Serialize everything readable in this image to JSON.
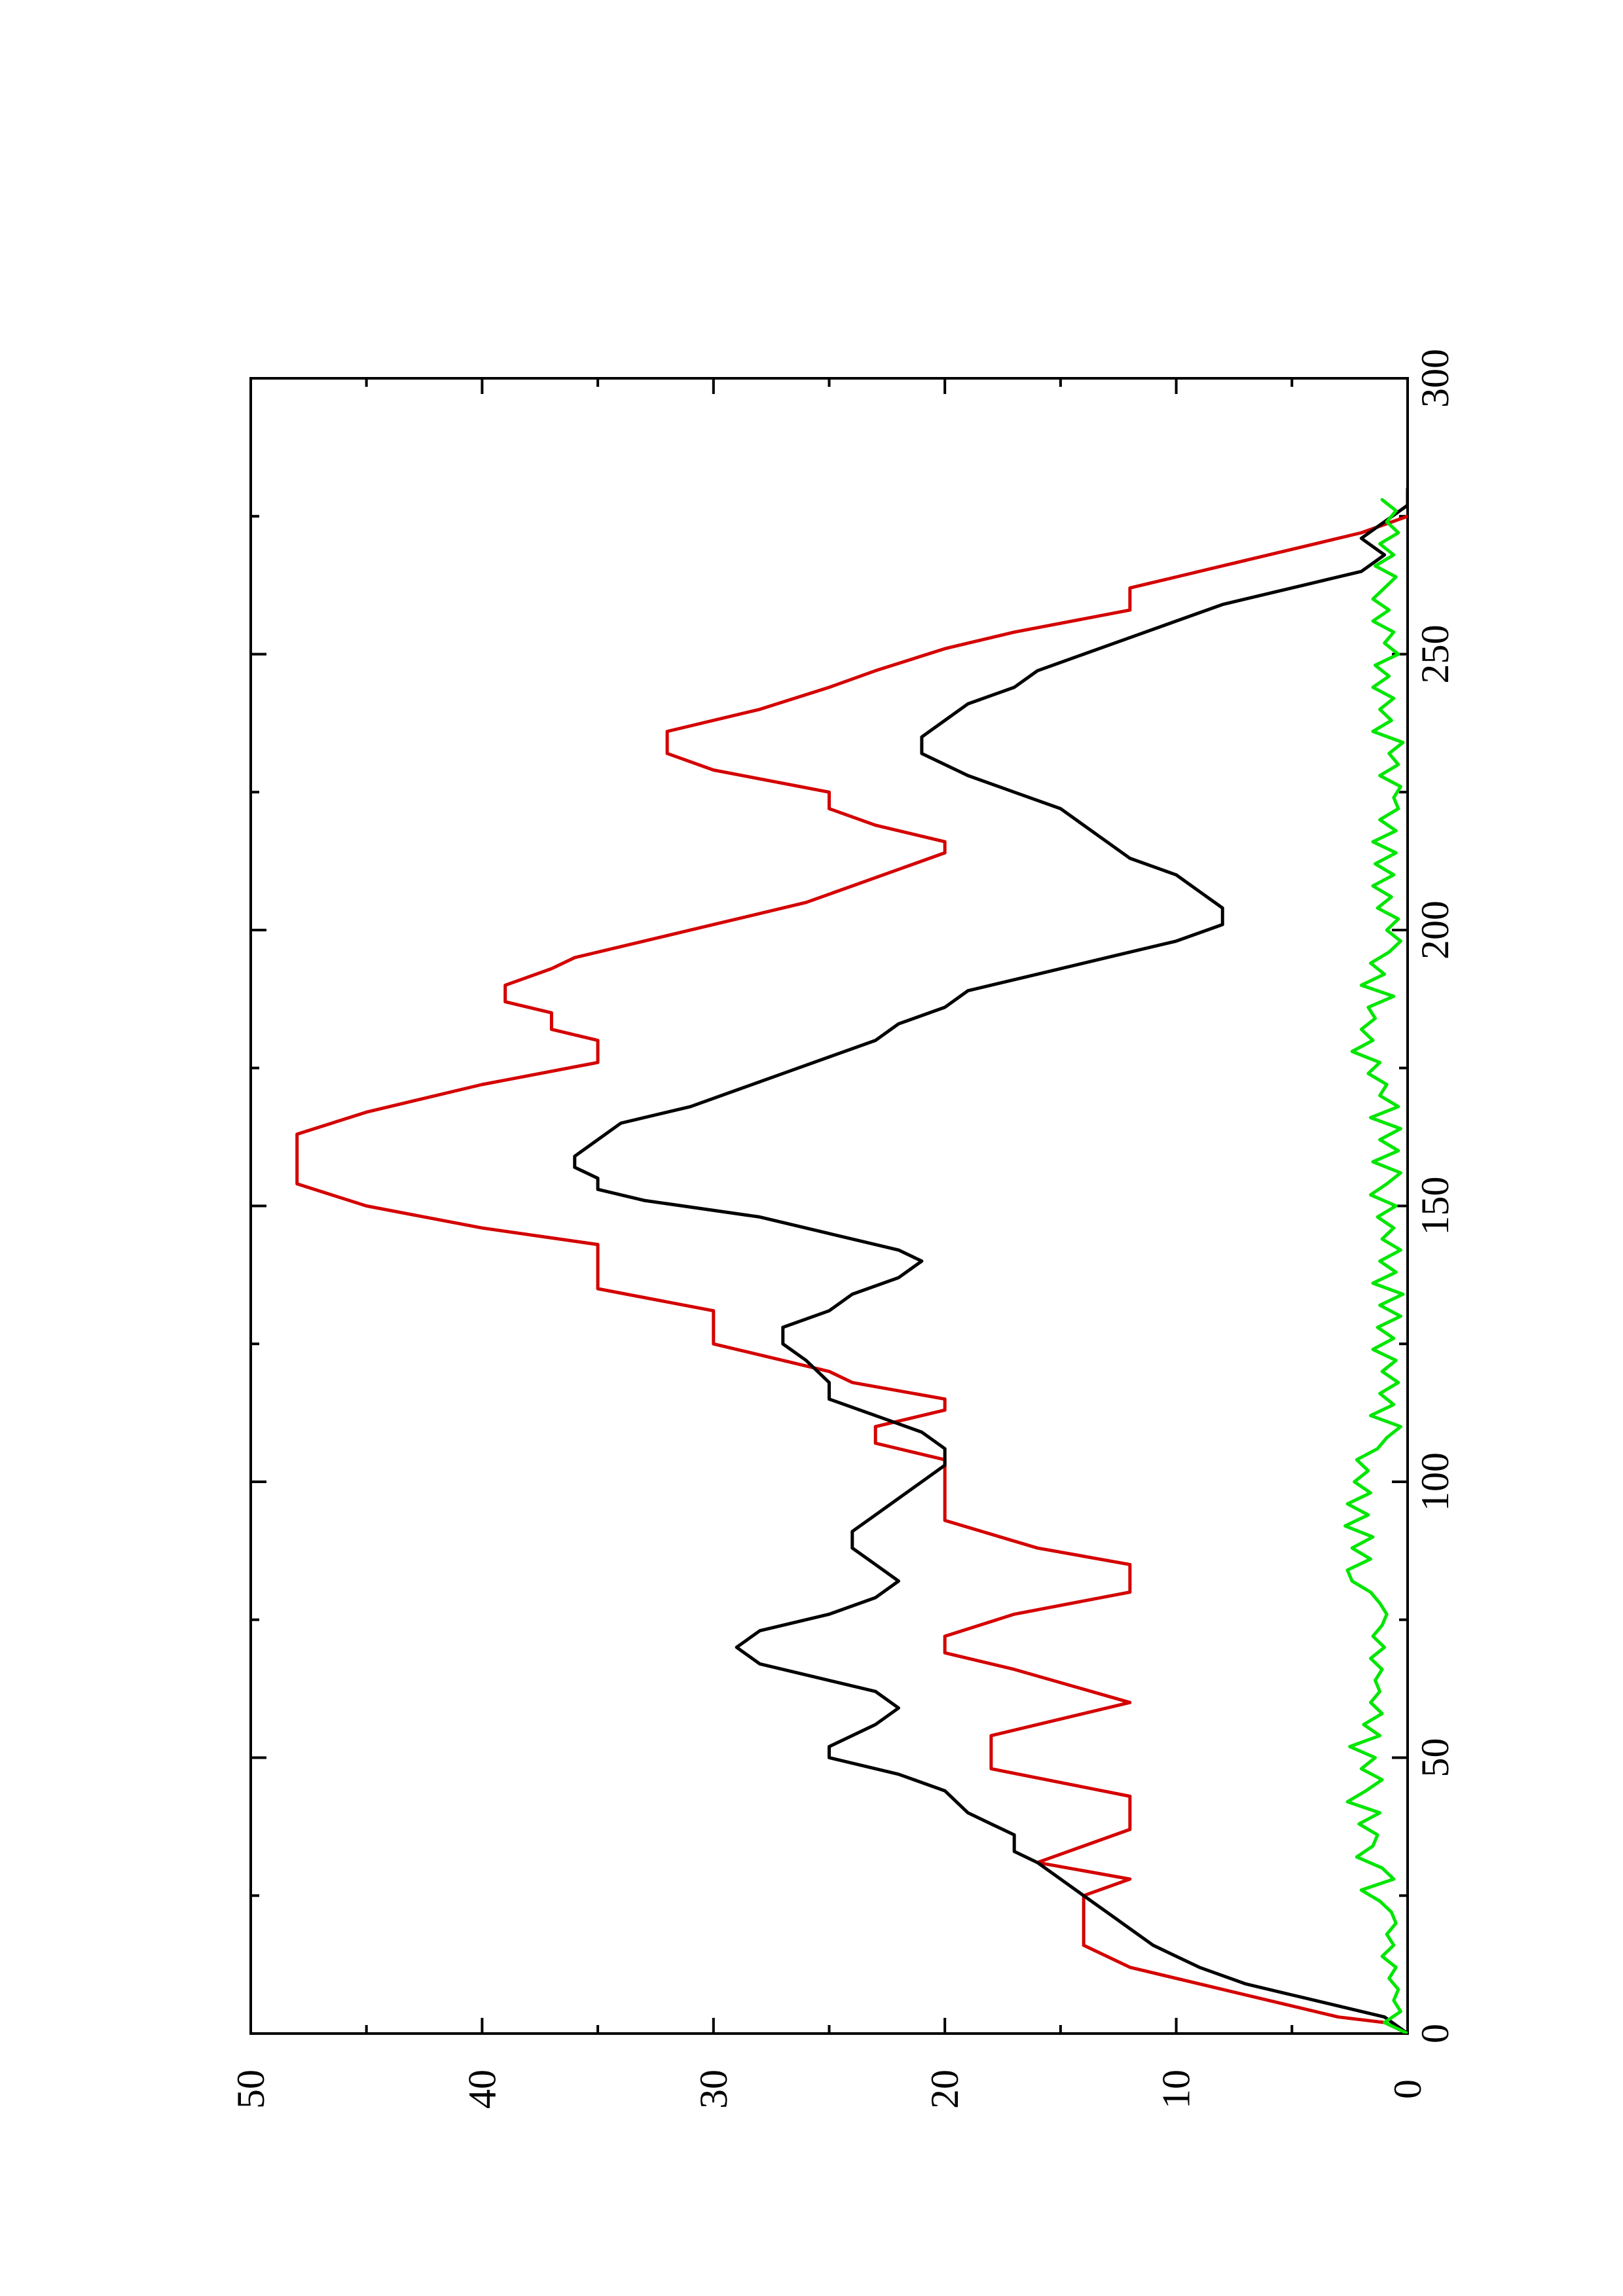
{
  "chart_data": {
    "type": "line",
    "orientation": "rotated-90-ccw",
    "title": "",
    "xlabel": "",
    "ylabel": "",
    "xlim": [
      0,
      300
    ],
    "ylim": [
      0,
      50
    ],
    "x_ticks": [
      0,
      50,
      100,
      150,
      200,
      250,
      300
    ],
    "y_ticks": [
      0,
      10,
      20,
      30,
      40,
      50
    ],
    "x_tick_labels": [
      "0",
      "50",
      "100",
      "150",
      "200",
      "250",
      "300"
    ],
    "y_tick_labels": [
      "0",
      "10",
      "20",
      "30",
      "40",
      "50"
    ],
    "grid": false,
    "legend": "none",
    "series": [
      {
        "color": "#d40000",
        "step": true,
        "points": [
          [
            0,
            0
          ],
          [
            2,
            1
          ],
          [
            3,
            3
          ],
          [
            8,
            8
          ],
          [
            12,
            12
          ],
          [
            16,
            14
          ],
          [
            25,
            14
          ],
          [
            28,
            12
          ],
          [
            31,
            16
          ],
          [
            37,
            12
          ],
          [
            43,
            12
          ],
          [
            48,
            18
          ],
          [
            54,
            18
          ],
          [
            60,
            12
          ],
          [
            66,
            17
          ],
          [
            69,
            20
          ],
          [
            72,
            20
          ],
          [
            76,
            17
          ],
          [
            80,
            12
          ],
          [
            85,
            12
          ],
          [
            88,
            16
          ],
          [
            93,
            20
          ],
          [
            104,
            20
          ],
          [
            107,
            23
          ],
          [
            110,
            23
          ],
          [
            113,
            20
          ],
          [
            115,
            20
          ],
          [
            118,
            24
          ],
          [
            120,
            25
          ],
          [
            125,
            30
          ],
          [
            131,
            30
          ],
          [
            135,
            35
          ],
          [
            143,
            35
          ],
          [
            146,
            40
          ],
          [
            150,
            45
          ],
          [
            154,
            48
          ],
          [
            163,
            48
          ],
          [
            167,
            45
          ],
          [
            172,
            40
          ],
          [
            176,
            35
          ],
          [
            180,
            35
          ],
          [
            182,
            37
          ],
          [
            185,
            37
          ],
          [
            187,
            39
          ],
          [
            190,
            39
          ],
          [
            193,
            37
          ],
          [
            195,
            36
          ],
          [
            199,
            32
          ],
          [
            201,
            30
          ],
          [
            205,
            26
          ],
          [
            208,
            24
          ],
          [
            211,
            22
          ],
          [
            214,
            20
          ],
          [
            216,
            20
          ],
          [
            219,
            23
          ],
          [
            222,
            25
          ],
          [
            225,
            25
          ],
          [
            229,
            30
          ],
          [
            232,
            32
          ],
          [
            236,
            32
          ],
          [
            240,
            28
          ],
          [
            244,
            25
          ],
          [
            247,
            23
          ],
          [
            251,
            20
          ],
          [
            254,
            17
          ],
          [
            258,
            12
          ],
          [
            262,
            12
          ],
          [
            264,
            10
          ],
          [
            266,
            8
          ],
          [
            270,
            4
          ],
          [
            272,
            2
          ],
          [
            275,
            0
          ]
        ]
      },
      {
        "color": "#000000",
        "step": false,
        "points": [
          [
            0,
            0
          ],
          [
            3,
            1
          ],
          [
            5,
            3
          ],
          [
            7,
            5
          ],
          [
            9,
            7
          ],
          [
            12,
            9
          ],
          [
            14,
            10
          ],
          [
            16,
            11
          ],
          [
            19,
            12
          ],
          [
            22,
            13
          ],
          [
            25,
            14
          ],
          [
            28,
            15
          ],
          [
            31,
            16
          ],
          [
            33,
            17
          ],
          [
            36,
            17
          ],
          [
            38,
            18
          ],
          [
            40,
            19
          ],
          [
            44,
            20
          ],
          [
            47,
            22
          ],
          [
            50,
            25
          ],
          [
            52,
            25
          ],
          [
            56,
            23
          ],
          [
            59,
            22
          ],
          [
            62,
            23
          ],
          [
            65,
            26
          ],
          [
            67,
            28
          ],
          [
            70,
            29
          ],
          [
            73,
            28
          ],
          [
            76,
            25
          ],
          [
            79,
            23
          ],
          [
            82,
            22
          ],
          [
            85,
            23
          ],
          [
            88,
            24
          ],
          [
            91,
            24
          ],
          [
            94,
            23
          ],
          [
            97,
            22
          ],
          [
            100,
            21
          ],
          [
            103,
            20
          ],
          [
            106,
            20
          ],
          [
            109,
            21
          ],
          [
            112,
            23
          ],
          [
            115,
            25
          ],
          [
            118,
            25
          ],
          [
            122,
            26
          ],
          [
            125,
            27
          ],
          [
            128,
            27
          ],
          [
            131,
            25
          ],
          [
            134,
            24
          ],
          [
            137,
            22
          ],
          [
            140,
            21
          ],
          [
            142,
            22
          ],
          [
            145,
            25
          ],
          [
            148,
            28
          ],
          [
            151,
            33
          ],
          [
            153,
            35
          ],
          [
            155,
            35
          ],
          [
            157,
            36
          ],
          [
            159,
            36
          ],
          [
            162,
            35
          ],
          [
            165,
            34
          ],
          [
            168,
            31
          ],
          [
            171,
            29
          ],
          [
            174,
            27
          ],
          [
            177,
            25
          ],
          [
            180,
            23
          ],
          [
            183,
            22
          ],
          [
            186,
            20
          ],
          [
            189,
            19
          ],
          [
            192,
            16
          ],
          [
            195,
            13
          ],
          [
            198,
            10
          ],
          [
            201,
            8
          ],
          [
            204,
            8
          ],
          [
            207,
            9
          ],
          [
            210,
            10
          ],
          [
            213,
            12
          ],
          [
            216,
            13
          ],
          [
            219,
            14
          ],
          [
            222,
            15
          ],
          [
            225,
            17
          ],
          [
            228,
            19
          ],
          [
            230,
            20
          ],
          [
            232,
            21
          ],
          [
            235,
            21
          ],
          [
            238,
            20
          ],
          [
            241,
            19
          ],
          [
            244,
            17
          ],
          [
            247,
            16
          ],
          [
            250,
            14
          ],
          [
            253,
            12
          ],
          [
            256,
            10
          ],
          [
            259,
            8
          ],
          [
            262,
            5
          ],
          [
            265,
            2
          ],
          [
            268,
            1
          ],
          [
            271,
            2
          ],
          [
            274,
            1
          ],
          [
            277,
            0
          ],
          [
            280,
            0
          ]
        ]
      },
      {
        "color": "#00e600",
        "step": false,
        "points": [
          [
            0,
            0
          ],
          [
            2,
            1
          ],
          [
            4,
            0.3
          ],
          [
            6,
            0.6
          ],
          [
            8,
            0.4
          ],
          [
            10,
            0.8
          ],
          [
            12,
            0.5
          ],
          [
            14,
            1.1
          ],
          [
            16,
            0.6
          ],
          [
            18,
            0.9
          ],
          [
            20,
            0.5
          ],
          [
            22,
            0.7
          ],
          [
            24,
            1.2
          ],
          [
            26,
            2
          ],
          [
            28,
            0.6
          ],
          [
            30,
            1.1
          ],
          [
            32,
            2.2
          ],
          [
            34,
            1.5
          ],
          [
            36,
            1.3
          ],
          [
            38,
            2.1
          ],
          [
            40,
            1.2
          ],
          [
            42,
            2.6
          ],
          [
            44,
            1.8
          ],
          [
            46,
            1.1
          ],
          [
            48,
            2
          ],
          [
            50,
            1.4
          ],
          [
            52,
            2.5
          ],
          [
            54,
            1.2
          ],
          [
            56,
            1.9
          ],
          [
            58,
            1.1
          ],
          [
            60,
            1.6
          ],
          [
            62,
            1.2
          ],
          [
            64,
            1.4
          ],
          [
            66,
            1.1
          ],
          [
            68,
            1.6
          ],
          [
            70,
            1
          ],
          [
            72,
            1.5
          ],
          [
            74,
            1.1
          ],
          [
            76,
            0.9
          ],
          [
            78,
            1.2
          ],
          [
            80,
            1.6
          ],
          [
            82,
            2.4
          ],
          [
            84,
            2.6
          ],
          [
            86,
            1.6
          ],
          [
            88,
            2.4
          ],
          [
            90,
            1.5
          ],
          [
            92,
            2.7
          ],
          [
            94,
            1.7
          ],
          [
            96,
            2.6
          ],
          [
            98,
            1.6
          ],
          [
            100,
            2.3
          ],
          [
            102,
            1.7
          ],
          [
            104,
            2.2
          ],
          [
            106,
            1.3
          ],
          [
            108,
            0.9
          ],
          [
            110,
            0.3
          ],
          [
            112,
            1.6
          ],
          [
            114,
            0.6
          ],
          [
            116,
            1.2
          ],
          [
            118,
            0.4
          ],
          [
            120,
            1.1
          ],
          [
            122,
            0.5
          ],
          [
            124,
            1.5
          ],
          [
            126,
            0.6
          ],
          [
            128,
            1.3
          ],
          [
            130,
            0.3
          ],
          [
            132,
            1.2
          ],
          [
            134,
            0.2
          ],
          [
            136,
            1.5
          ],
          [
            138,
            0.5
          ],
          [
            140,
            1.2
          ],
          [
            142,
            0.3
          ],
          [
            144,
            1.1
          ],
          [
            146,
            0.6
          ],
          [
            148,
            1.3
          ],
          [
            150,
            0.5
          ],
          [
            152,
            1.6
          ],
          [
            154,
            0.9
          ],
          [
            156,
            0.3
          ],
          [
            158,
            1.5
          ],
          [
            160,
            0.4
          ],
          [
            162,
            1.2
          ],
          [
            164,
            0.3
          ],
          [
            166,
            1.6
          ],
          [
            168,
            0.4
          ],
          [
            170,
            1.2
          ],
          [
            172,
            0.9
          ],
          [
            174,
            1.7
          ],
          [
            176,
            1.2
          ],
          [
            178,
            2.4
          ],
          [
            180,
            1.5
          ],
          [
            182,
            2
          ],
          [
            184,
            1.4
          ],
          [
            186,
            1.7
          ],
          [
            188,
            0.6
          ],
          [
            190,
            2
          ],
          [
            192,
            1
          ],
          [
            194,
            1.6
          ],
          [
            196,
            0.8
          ],
          [
            198,
            0.3
          ],
          [
            200,
            0.9
          ],
          [
            202,
            0.4
          ],
          [
            204,
            1.3
          ],
          [
            206,
            0.7
          ],
          [
            208,
            1.5
          ],
          [
            210,
            0.6
          ],
          [
            212,
            1.4
          ],
          [
            214,
            0.5
          ],
          [
            216,
            1.5
          ],
          [
            218,
            0.5
          ],
          [
            220,
            1.2
          ],
          [
            222,
            0.4
          ],
          [
            224,
            0.6
          ],
          [
            226,
            0.3
          ],
          [
            228,
            1.2
          ],
          [
            230,
            0.4
          ],
          [
            232,
            0.8
          ],
          [
            234,
            0.2
          ],
          [
            236,
            1.5
          ],
          [
            238,
            0.7
          ],
          [
            240,
            1.2
          ],
          [
            242,
            0.6
          ],
          [
            244,
            1.5
          ],
          [
            246,
            0.8
          ],
          [
            248,
            1.4
          ],
          [
            250,
            0.4
          ],
          [
            252,
            1
          ],
          [
            254,
            0.6
          ],
          [
            256,
            1.5
          ],
          [
            258,
            0.8
          ],
          [
            260,
            1.5
          ],
          [
            262,
            1
          ],
          [
            264,
            0.5
          ],
          [
            266,
            1.4
          ],
          [
            268,
            0.6
          ],
          [
            270,
            1.2
          ],
          [
            272,
            0.4
          ],
          [
            274,
            0.9
          ],
          [
            276,
            0.5
          ],
          [
            278,
            1.1
          ]
        ]
      }
    ]
  }
}
